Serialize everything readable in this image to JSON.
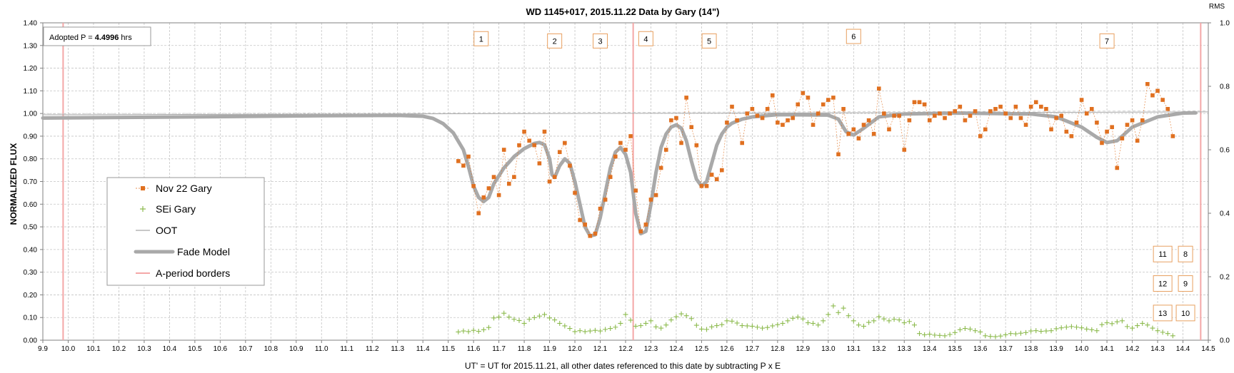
{
  "chart_data": {
    "type": "line",
    "title": "WD 1145+017, 2015.11.22 Data by Gary (14\")",
    "xlabel": "UT' = UT for 2015.11.21, all other dates referenced to this date by subtracting P x E",
    "ylabel": "NORMALIZED FLUX",
    "y2label": "RMS",
    "xlim": [
      9.9,
      14.5
    ],
    "ylim": [
      0.0,
      1.4
    ],
    "y2lim": [
      0.0,
      1.0
    ],
    "x_ticks": [
      "9.9",
      "10.0",
      "10.1",
      "10.2",
      "10.3",
      "10.4",
      "10.5",
      "10.6",
      "10.7",
      "10.8",
      "10.9",
      "11.0",
      "11.1",
      "11.2",
      "11.3",
      "11.4",
      "11.5",
      "11.6",
      "11.7",
      "11.8",
      "11.9",
      "12.0",
      "12.1",
      "12.2",
      "12.3",
      "12.4",
      "12.5",
      "12.6",
      "12.7",
      "12.8",
      "12.9",
      "13.0",
      "13.1",
      "13.2",
      "13.3",
      "13.4",
      "13.5",
      "13.6",
      "13.7",
      "13.8",
      "13.9",
      "14.0",
      "14.1",
      "14.2",
      "14.3",
      "14.4",
      "14.5"
    ],
    "y_ticks": [
      "0.00",
      "0.10",
      "0.20",
      "0.30",
      "0.40",
      "0.50",
      "0.60",
      "0.70",
      "0.80",
      "0.90",
      "1.00",
      "1.10",
      "1.20",
      "1.30",
      "1.40"
    ],
    "y2_ticks": [
      "0.0",
      "0.2",
      "0.4",
      "0.6",
      "0.8",
      "1.0"
    ],
    "grid": true,
    "annotation_box": {
      "prefix": "Adopted P = ",
      "value": "4.4996",
      "suffix": " hrs"
    },
    "legend": {
      "placement": "left-middle",
      "entries": [
        {
          "label": "Nov 22 Gary",
          "style": "orange-squares"
        },
        {
          "label": "SEi Gary",
          "style": "green-plus"
        },
        {
          "label": "OOT",
          "style": "thin-gray-line"
        },
        {
          "label": "Fade Model",
          "style": "thick-gray-line"
        },
        {
          "label": "A-period borders",
          "style": "pink-line"
        }
      ]
    },
    "vertical_lines": [
      9.98,
      12.23,
      14.47
    ],
    "dip_labels": [
      {
        "text": "1",
        "x": 11.63,
        "y": 1.33
      },
      {
        "text": "2",
        "x": 11.92,
        "y": 1.32
      },
      {
        "text": "3",
        "x": 12.1,
        "y": 1.32
      },
      {
        "text": "4",
        "x": 12.28,
        "y": 1.33
      },
      {
        "text": "5",
        "x": 12.53,
        "y": 1.32
      },
      {
        "text": "6",
        "x": 13.1,
        "y": 1.34
      },
      {
        "text": "7",
        "x": 14.1,
        "y": 1.32
      }
    ],
    "right_labels": [
      {
        "text": "8",
        "x": 14.41,
        "y": 0.38
      },
      {
        "text": "11",
        "x": 14.32,
        "y": 0.38
      },
      {
        "text": "12",
        "x": 14.32,
        "y": 0.25
      },
      {
        "text": "9",
        "x": 14.41,
        "y": 0.25
      },
      {
        "text": "13",
        "x": 14.32,
        "y": 0.12
      },
      {
        "text": "10",
        "x": 14.41,
        "y": 0.12
      }
    ],
    "colors": {
      "data": "#E07020",
      "rms": "#8DBB4F",
      "oot": "#A8A8A8",
      "model": "#A9A9A9",
      "borders": "#F4A7A7",
      "grid": "#C4C4C4",
      "label_border": "#E8A060"
    },
    "series": [
      {
        "name": "Nov 22 Gary",
        "x": [
          11.54,
          11.56,
          11.58,
          11.6,
          11.62,
          11.64,
          11.66,
          11.68,
          11.7,
          11.72,
          11.74,
          11.76,
          11.78,
          11.8,
          11.82,
          11.84,
          11.86,
          11.88,
          11.9,
          11.92,
          11.94,
          11.96,
          11.98,
          12.0,
          12.02,
          12.04,
          12.06,
          12.08,
          12.1,
          12.12,
          12.14,
          12.16,
          12.18,
          12.2,
          12.22,
          12.24,
          12.26,
          12.28,
          12.3,
          12.32,
          12.34,
          12.36,
          12.38,
          12.4,
          12.42,
          12.44,
          12.46,
          12.48,
          12.5,
          12.52,
          12.54,
          12.56,
          12.58,
          12.6,
          12.62,
          12.64,
          12.66,
          12.68,
          12.7,
          12.72,
          12.74,
          12.76,
          12.78,
          12.8,
          12.82,
          12.84,
          12.86,
          12.88,
          12.9,
          12.92,
          12.94,
          12.96,
          12.98,
          13.0,
          13.02,
          13.04,
          13.06,
          13.08,
          13.1,
          13.12,
          13.14,
          13.16,
          13.18,
          13.2,
          13.22,
          13.24,
          13.26,
          13.28,
          13.3,
          13.32,
          13.34,
          13.36,
          13.38,
          13.4,
          13.42,
          13.44,
          13.46,
          13.48,
          13.5,
          13.52,
          13.54,
          13.56,
          13.58,
          13.6,
          13.62,
          13.64,
          13.66,
          13.68,
          13.7,
          13.72,
          13.74,
          13.76,
          13.78,
          13.8,
          13.82,
          13.84,
          13.86,
          13.88,
          13.9,
          13.92,
          13.94,
          13.96,
          13.98,
          14.0,
          14.02,
          14.04,
          14.06,
          14.08,
          14.1,
          14.12,
          14.14,
          14.16,
          14.18,
          14.2,
          14.22,
          14.24,
          14.26,
          14.28,
          14.3,
          14.32,
          14.34,
          14.36
        ],
        "values": [
          0.79,
          0.77,
          0.81,
          0.68,
          0.56,
          0.63,
          0.67,
          0.72,
          0.64,
          0.84,
          0.69,
          0.72,
          0.86,
          0.92,
          0.88,
          0.86,
          0.78,
          0.92,
          0.7,
          0.72,
          0.83,
          0.87,
          0.77,
          0.65,
          0.53,
          0.51,
          0.46,
          0.47,
          0.58,
          0.62,
          0.72,
          0.81,
          0.87,
          0.84,
          0.9,
          0.66,
          0.48,
          0.51,
          0.62,
          0.64,
          0.76,
          0.84,
          0.97,
          0.98,
          0.87,
          1.07,
          0.94,
          0.86,
          0.68,
          0.68,
          0.73,
          0.71,
          0.75,
          0.96,
          1.03,
          0.97,
          0.87,
          1.0,
          1.02,
          0.99,
          0.98,
          1.02,
          1.08,
          0.96,
          0.95,
          0.97,
          0.98,
          1.04,
          1.09,
          1.07,
          0.95,
          1.0,
          1.04,
          1.06,
          1.07,
          0.82,
          1.02,
          0.91,
          0.93,
          0.89,
          0.95,
          0.97,
          0.91,
          1.11,
          1.0,
          0.93,
          0.99,
          0.99,
          0.84,
          0.97,
          1.05,
          1.05,
          1.04,
          0.97,
          0.99,
          1.0,
          0.98,
          1.0,
          1.01,
          1.03,
          0.97,
          0.99,
          1.01,
          0.9,
          0.93,
          1.01,
          1.02,
          1.03,
          1.0,
          0.98,
          1.03,
          0.98,
          0.95,
          1.03,
          1.05,
          1.03,
          1.02,
          0.93,
          0.98,
          0.99,
          0.92,
          0.9,
          0.96,
          1.06,
          1.0,
          1.02,
          0.96,
          0.87,
          0.92,
          0.94,
          0.76,
          0.89,
          0.95,
          0.97,
          0.88,
          0.97,
          1.13,
          1.08,
          1.1,
          1.06,
          1.02,
          0.9
        ]
      },
      {
        "name": "SEi Gary",
        "x": [
          11.54,
          11.56,
          11.58,
          11.6,
          11.62,
          11.64,
          11.66,
          11.68,
          11.7,
          11.72,
          11.74,
          11.76,
          11.78,
          11.8,
          11.82,
          11.84,
          11.86,
          11.88,
          11.9,
          11.92,
          11.94,
          11.96,
          11.98,
          12.0,
          12.02,
          12.04,
          12.06,
          12.08,
          12.1,
          12.12,
          12.14,
          12.16,
          12.18,
          12.2,
          12.22,
          12.24,
          12.26,
          12.28,
          12.3,
          12.32,
          12.34,
          12.36,
          12.38,
          12.4,
          12.42,
          12.44,
          12.46,
          12.48,
          12.5,
          12.52,
          12.54,
          12.56,
          12.58,
          12.6,
          12.62,
          12.64,
          12.66,
          12.68,
          12.7,
          12.72,
          12.74,
          12.76,
          12.78,
          12.8,
          12.82,
          12.84,
          12.86,
          12.88,
          12.9,
          12.92,
          12.94,
          12.96,
          12.98,
          13.0,
          13.02,
          13.04,
          13.06,
          13.08,
          13.1,
          13.12,
          13.14,
          13.16,
          13.18,
          13.2,
          13.22,
          13.24,
          13.26,
          13.28,
          13.3,
          13.32,
          13.34,
          13.36,
          13.38,
          13.4,
          13.42,
          13.44,
          13.46,
          13.48,
          13.5,
          13.52,
          13.54,
          13.56,
          13.58,
          13.6,
          13.62,
          13.64,
          13.66,
          13.68,
          13.7,
          13.72,
          13.74,
          13.76,
          13.78,
          13.8,
          13.82,
          13.84,
          13.86,
          13.88,
          13.9,
          13.92,
          13.94,
          13.96,
          13.98,
          14.0,
          14.02,
          14.04,
          14.06,
          14.08,
          14.1,
          14.12,
          14.14,
          14.16,
          14.18,
          14.2,
          14.22,
          14.24,
          14.26,
          14.28,
          14.3,
          14.32,
          14.34,
          14.36
        ],
        "values": [
          0.026,
          0.029,
          0.027,
          0.031,
          0.028,
          0.033,
          0.04,
          0.07,
          0.073,
          0.085,
          0.073,
          0.066,
          0.062,
          0.053,
          0.066,
          0.071,
          0.076,
          0.081,
          0.07,
          0.064,
          0.053,
          0.045,
          0.037,
          0.027,
          0.03,
          0.027,
          0.029,
          0.031,
          0.029,
          0.034,
          0.037,
          0.041,
          0.053,
          0.081,
          0.063,
          0.044,
          0.046,
          0.053,
          0.061,
          0.042,
          0.038,
          0.048,
          0.064,
          0.074,
          0.083,
          0.077,
          0.068,
          0.047,
          0.035,
          0.034,
          0.042,
          0.046,
          0.049,
          0.061,
          0.06,
          0.054,
          0.046,
          0.045,
          0.044,
          0.041,
          0.038,
          0.04,
          0.045,
          0.049,
          0.053,
          0.061,
          0.069,
          0.073,
          0.067,
          0.055,
          0.053,
          0.048,
          0.061,
          0.081,
          0.108,
          0.087,
          0.101,
          0.077,
          0.061,
          0.048,
          0.044,
          0.056,
          0.061,
          0.074,
          0.067,
          0.061,
          0.066,
          0.064,
          0.055,
          0.059,
          0.048,
          0.021,
          0.017,
          0.019,
          0.016,
          0.015,
          0.014,
          0.018,
          0.024,
          0.033,
          0.037,
          0.035,
          0.03,
          0.026,
          0.014,
          0.012,
          0.011,
          0.013,
          0.017,
          0.021,
          0.02,
          0.022,
          0.024,
          0.029,
          0.03,
          0.028,
          0.029,
          0.03,
          0.036,
          0.039,
          0.041,
          0.043,
          0.041,
          0.039,
          0.035,
          0.033,
          0.03,
          0.049,
          0.055,
          0.052,
          0.058,
          0.061,
          0.043,
          0.038,
          0.046,
          0.053,
          0.048,
          0.038,
          0.03,
          0.025,
          0.021,
          0.014
        ]
      },
      {
        "name": "OOT",
        "x": [
          9.9,
          14.5
        ],
        "values": [
          0.994,
          1.007
        ]
      },
      {
        "name": "Fade Model",
        "x": [
          9.9,
          10.5,
          11.0,
          11.3,
          11.4,
          11.44,
          11.48,
          11.52,
          11.56,
          11.58,
          11.6,
          11.62,
          11.64,
          11.66,
          11.68,
          11.72,
          11.76,
          11.8,
          11.84,
          11.86,
          11.88,
          11.9,
          11.91,
          11.92,
          11.94,
          11.96,
          11.98,
          12.0,
          12.02,
          12.04,
          12.06,
          12.08,
          12.1,
          12.12,
          12.14,
          12.16,
          12.18,
          12.2,
          12.22,
          12.24,
          12.26,
          12.28,
          12.3,
          12.32,
          12.34,
          12.36,
          12.38,
          12.4,
          12.42,
          12.44,
          12.46,
          12.48,
          12.5,
          12.52,
          12.54,
          12.56,
          12.58,
          12.6,
          12.62,
          12.66,
          12.7,
          12.8,
          13.0,
          13.04,
          13.07,
          13.1,
          13.14,
          13.2,
          13.3,
          13.5,
          13.8,
          13.9,
          14.0,
          14.06,
          14.1,
          14.14,
          14.2,
          14.3,
          14.4,
          14.45
        ],
        "values": [
          0.98,
          0.985,
          0.99,
          0.992,
          0.988,
          0.978,
          0.955,
          0.915,
          0.84,
          0.765,
          0.68,
          0.63,
          0.612,
          0.63,
          0.69,
          0.76,
          0.81,
          0.845,
          0.868,
          0.872,
          0.862,
          0.8,
          0.73,
          0.718,
          0.77,
          0.8,
          0.78,
          0.7,
          0.6,
          0.5,
          0.46,
          0.465,
          0.54,
          0.65,
          0.76,
          0.83,
          0.85,
          0.82,
          0.74,
          0.56,
          0.47,
          0.48,
          0.6,
          0.74,
          0.85,
          0.91,
          0.94,
          0.95,
          0.935,
          0.88,
          0.79,
          0.71,
          0.68,
          0.7,
          0.78,
          0.86,
          0.91,
          0.94,
          0.957,
          0.975,
          0.985,
          0.995,
          0.993,
          0.975,
          0.92,
          0.905,
          0.935,
          0.985,
          0.998,
          1.002,
          0.998,
          0.985,
          0.94,
          0.895,
          0.872,
          0.88,
          0.94,
          0.985,
          1.002,
          1.003
        ]
      }
    ]
  }
}
